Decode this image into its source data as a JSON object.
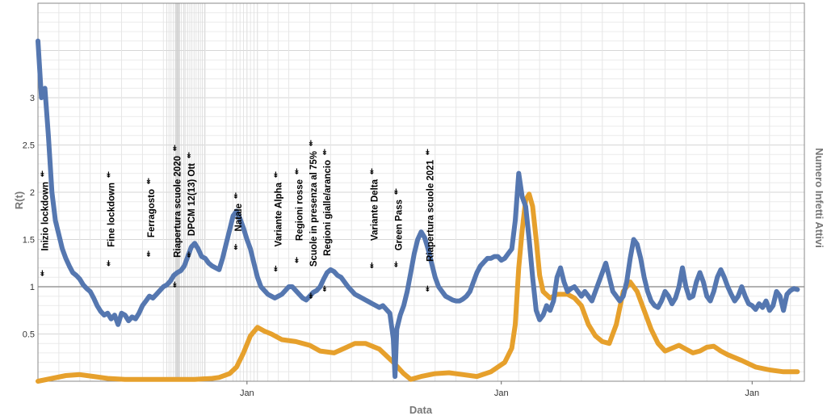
{
  "chart_data": {
    "type": "line",
    "ylabel": "R(t)",
    "ylabel_right": "Numero Infetti Attivi",
    "xlabel": "Data",
    "ylim": [
      0,
      4.0
    ],
    "yticks": [
      "0.5",
      "1",
      "1.5",
      "2",
      "2.5",
      "3"
    ],
    "xticks": [
      "Jan",
      "Jan",
      "Jan"
    ],
    "reference_line_y": 1,
    "series": [
      {
        "color": "#5577b0",
        "values": [
          [
            0,
            3.6
          ],
          [
            2,
            3.0
          ],
          [
            4,
            3.1
          ],
          [
            6,
            2.6
          ],
          [
            8,
            2.0
          ],
          [
            10,
            1.7
          ],
          [
            12,
            1.55
          ],
          [
            14,
            1.4
          ],
          [
            16,
            1.3
          ],
          [
            18,
            1.22
          ],
          [
            20,
            1.15
          ],
          [
            22,
            1.12
          ],
          [
            24,
            1.08
          ],
          [
            26,
            1.02
          ],
          [
            28,
            0.98
          ],
          [
            30,
            0.95
          ],
          [
            32,
            0.88
          ],
          [
            34,
            0.8
          ],
          [
            36,
            0.74
          ],
          [
            38,
            0.7
          ],
          [
            40,
            0.72
          ],
          [
            42,
            0.66
          ],
          [
            44,
            0.7
          ],
          [
            46,
            0.6
          ],
          [
            48,
            0.72
          ],
          [
            50,
            0.7
          ],
          [
            52,
            0.64
          ],
          [
            54,
            0.68
          ],
          [
            56,
            0.66
          ],
          [
            58,
            0.72
          ],
          [
            60,
            0.8
          ],
          [
            62,
            0.85
          ],
          [
            64,
            0.9
          ],
          [
            66,
            0.88
          ],
          [
            68,
            0.92
          ],
          [
            70,
            0.96
          ],
          [
            72,
            1.0
          ],
          [
            74,
            1.02
          ],
          [
            76,
            1.06
          ],
          [
            78,
            1.12
          ],
          [
            80,
            1.15
          ],
          [
            82,
            1.17
          ],
          [
            84,
            1.22
          ],
          [
            86,
            1.32
          ],
          [
            88,
            1.42
          ],
          [
            90,
            1.46
          ],
          [
            92,
            1.4
          ],
          [
            94,
            1.32
          ],
          [
            96,
            1.3
          ],
          [
            98,
            1.25
          ],
          [
            100,
            1.22
          ],
          [
            102,
            1.2
          ],
          [
            104,
            1.18
          ],
          [
            106,
            1.3
          ],
          [
            108,
            1.45
          ],
          [
            110,
            1.6
          ],
          [
            112,
            1.75
          ],
          [
            114,
            1.8
          ],
          [
            116,
            1.72
          ],
          [
            118,
            1.62
          ],
          [
            120,
            1.5
          ],
          [
            122,
            1.4
          ],
          [
            124,
            1.25
          ],
          [
            126,
            1.1
          ],
          [
            128,
            1.0
          ],
          [
            130,
            0.96
          ],
          [
            132,
            0.92
          ],
          [
            134,
            0.9
          ],
          [
            136,
            0.88
          ],
          [
            138,
            0.9
          ],
          [
            140,
            0.92
          ],
          [
            142,
            0.96
          ],
          [
            144,
            1.0
          ],
          [
            146,
            1.0
          ],
          [
            148,
            0.96
          ],
          [
            150,
            0.92
          ],
          [
            152,
            0.88
          ],
          [
            154,
            0.86
          ],
          [
            156,
            0.9
          ],
          [
            158,
            0.94
          ],
          [
            160,
            0.96
          ],
          [
            162,
            1.0
          ],
          [
            164,
            1.08
          ],
          [
            166,
            1.15
          ],
          [
            168,
            1.18
          ],
          [
            170,
            1.16
          ],
          [
            172,
            1.12
          ],
          [
            174,
            1.1
          ],
          [
            176,
            1.05
          ],
          [
            178,
            1.0
          ],
          [
            180,
            0.96
          ],
          [
            182,
            0.92
          ],
          [
            184,
            0.9
          ],
          [
            186,
            0.88
          ],
          [
            188,
            0.86
          ],
          [
            190,
            0.84
          ],
          [
            192,
            0.82
          ],
          [
            194,
            0.8
          ],
          [
            196,
            0.78
          ],
          [
            198,
            0.8
          ],
          [
            200,
            0.76
          ],
          [
            202,
            0.72
          ],
          [
            204,
            0.45
          ],
          [
            205,
            0.05
          ],
          [
            206,
            0.55
          ],
          [
            208,
            0.7
          ],
          [
            210,
            0.8
          ],
          [
            212,
            0.95
          ],
          [
            214,
            1.15
          ],
          [
            216,
            1.35
          ],
          [
            218,
            1.5
          ],
          [
            220,
            1.58
          ],
          [
            222,
            1.52
          ],
          [
            224,
            1.4
          ],
          [
            226,
            1.25
          ],
          [
            228,
            1.1
          ],
          [
            230,
            1.0
          ],
          [
            232,
            0.95
          ],
          [
            234,
            0.9
          ],
          [
            236,
            0.88
          ],
          [
            238,
            0.86
          ],
          [
            240,
            0.85
          ],
          [
            242,
            0.85
          ],
          [
            244,
            0.87
          ],
          [
            246,
            0.9
          ],
          [
            248,
            0.95
          ],
          [
            250,
            1.05
          ],
          [
            252,
            1.15
          ],
          [
            254,
            1.22
          ],
          [
            256,
            1.26
          ],
          [
            258,
            1.3
          ],
          [
            260,
            1.3
          ],
          [
            262,
            1.32
          ],
          [
            264,
            1.32
          ],
          [
            266,
            1.28
          ],
          [
            268,
            1.3
          ],
          [
            270,
            1.35
          ],
          [
            272,
            1.4
          ],
          [
            274,
            1.7
          ],
          [
            276,
            2.2
          ],
          [
            278,
            1.95
          ],
          [
            280,
            1.85
          ],
          [
            282,
            1.5
          ],
          [
            284,
            1.1
          ],
          [
            286,
            0.75
          ],
          [
            288,
            0.65
          ],
          [
            290,
            0.7
          ],
          [
            292,
            0.8
          ],
          [
            294,
            0.75
          ],
          [
            296,
            0.85
          ],
          [
            298,
            1.1
          ],
          [
            300,
            1.2
          ],
          [
            302,
            1.05
          ],
          [
            304,
            0.95
          ],
          [
            306,
            0.98
          ],
          [
            308,
            1.0
          ],
          [
            310,
            0.95
          ],
          [
            312,
            0.9
          ],
          [
            314,
            0.95
          ],
          [
            316,
            0.9
          ],
          [
            318,
            0.85
          ],
          [
            320,
            0.95
          ],
          [
            322,
            1.05
          ],
          [
            324,
            1.15
          ],
          [
            326,
            1.25
          ],
          [
            328,
            1.1
          ],
          [
            330,
            0.95
          ],
          [
            332,
            0.9
          ],
          [
            334,
            0.85
          ],
          [
            336,
            0.9
          ],
          [
            338,
            1.05
          ],
          [
            340,
            1.3
          ],
          [
            342,
            1.5
          ],
          [
            344,
            1.45
          ],
          [
            346,
            1.3
          ],
          [
            348,
            1.1
          ],
          [
            350,
            0.95
          ],
          [
            352,
            0.85
          ],
          [
            354,
            0.8
          ],
          [
            356,
            0.78
          ],
          [
            358,
            0.85
          ],
          [
            360,
            0.95
          ],
          [
            362,
            0.9
          ],
          [
            364,
            0.82
          ],
          [
            366,
            0.88
          ],
          [
            368,
            1.0
          ],
          [
            370,
            1.2
          ],
          [
            372,
            1.0
          ],
          [
            374,
            0.88
          ],
          [
            376,
            0.9
          ],
          [
            378,
            1.05
          ],
          [
            380,
            1.15
          ],
          [
            382,
            1.05
          ],
          [
            384,
            0.9
          ],
          [
            386,
            0.85
          ],
          [
            388,
            0.95
          ],
          [
            390,
            1.1
          ],
          [
            392,
            1.18
          ],
          [
            394,
            1.1
          ],
          [
            396,
            1.0
          ],
          [
            398,
            0.92
          ],
          [
            400,
            0.85
          ],
          [
            402,
            0.9
          ],
          [
            404,
            1.0
          ],
          [
            406,
            0.9
          ],
          [
            408,
            0.82
          ],
          [
            410,
            0.8
          ],
          [
            412,
            0.76
          ],
          [
            414,
            0.82
          ],
          [
            416,
            0.78
          ],
          [
            418,
            0.85
          ],
          [
            420,
            0.75
          ],
          [
            422,
            0.8
          ],
          [
            424,
            0.95
          ],
          [
            426,
            0.9
          ],
          [
            428,
            0.75
          ],
          [
            430,
            0.92
          ],
          [
            432,
            0.96
          ],
          [
            434,
            0.98
          ],
          [
            436,
            0.97
          ]
        ]
      },
      {
        "color": "#e6a02c",
        "values": [
          [
            0,
            0.0
          ],
          [
            8,
            0.03
          ],
          [
            16,
            0.06
          ],
          [
            24,
            0.07
          ],
          [
            32,
            0.05
          ],
          [
            40,
            0.03
          ],
          [
            50,
            0.02
          ],
          [
            70,
            0.02
          ],
          [
            90,
            0.02
          ],
          [
            100,
            0.03
          ],
          [
            104,
            0.04
          ],
          [
            110,
            0.08
          ],
          [
            114,
            0.15
          ],
          [
            118,
            0.3
          ],
          [
            122,
            0.48
          ],
          [
            126,
            0.57
          ],
          [
            130,
            0.53
          ],
          [
            134,
            0.5
          ],
          [
            140,
            0.44
          ],
          [
            148,
            0.42
          ],
          [
            156,
            0.38
          ],
          [
            162,
            0.32
          ],
          [
            170,
            0.3
          ],
          [
            176,
            0.35
          ],
          [
            182,
            0.4
          ],
          [
            188,
            0.4
          ],
          [
            196,
            0.34
          ],
          [
            204,
            0.2
          ],
          [
            210,
            0.08
          ],
          [
            214,
            0.02
          ],
          [
            220,
            0.05
          ],
          [
            228,
            0.08
          ],
          [
            236,
            0.09
          ],
          [
            244,
            0.07
          ],
          [
            252,
            0.05
          ],
          [
            260,
            0.1
          ],
          [
            268,
            0.2
          ],
          [
            272,
            0.35
          ],
          [
            274,
            0.6
          ],
          [
            276,
            1.2
          ],
          [
            278,
            1.6
          ],
          [
            280,
            1.92
          ],
          [
            282,
            1.98
          ],
          [
            284,
            1.85
          ],
          [
            286,
            1.5
          ],
          [
            288,
            1.12
          ],
          [
            290,
            0.95
          ],
          [
            294,
            0.88
          ],
          [
            298,
            0.92
          ],
          [
            304,
            0.92
          ],
          [
            308,
            0.88
          ],
          [
            312,
            0.8
          ],
          [
            316,
            0.6
          ],
          [
            320,
            0.48
          ],
          [
            324,
            0.42
          ],
          [
            328,
            0.4
          ],
          [
            332,
            0.6
          ],
          [
            336,
            0.95
          ],
          [
            340,
            1.05
          ],
          [
            344,
            0.95
          ],
          [
            348,
            0.75
          ],
          [
            352,
            0.55
          ],
          [
            356,
            0.4
          ],
          [
            360,
            0.32
          ],
          [
            364,
            0.35
          ],
          [
            368,
            0.38
          ],
          [
            372,
            0.34
          ],
          [
            376,
            0.3
          ],
          [
            380,
            0.32
          ],
          [
            384,
            0.36
          ],
          [
            388,
            0.37
          ],
          [
            392,
            0.32
          ],
          [
            396,
            0.28
          ],
          [
            404,
            0.22
          ],
          [
            412,
            0.15
          ],
          [
            420,
            0.12
          ],
          [
            428,
            0.1
          ],
          [
            436,
            0.1
          ]
        ]
      }
    ],
    "events": [
      {
        "label": "Inizio lockdown",
        "x": 4
      },
      {
        "label": "Fine lockdown",
        "x": 42
      },
      {
        "label": "Ferragosto",
        "x": 65
      },
      {
        "label": "Riapertura scuole 2020",
        "x": 80
      },
      {
        "label": "DPCM 12(13) Ott",
        "x": 88
      },
      {
        "label": "Natale",
        "x": 115
      },
      {
        "label": "Variante Alpha",
        "x": 138
      },
      {
        "label": "Regioni rosse",
        "x": 150
      },
      {
        "label": "Scuole in presenza al 75%",
        "x": 158
      },
      {
        "label": "Regioni gialle/arancio",
        "x": 166
      },
      {
        "label": "Variante Delta",
        "x": 193
      },
      {
        "label": "Green Pass",
        "x": 207
      },
      {
        "label": "Riapertura scuole 2021",
        "x": 225
      }
    ]
  }
}
